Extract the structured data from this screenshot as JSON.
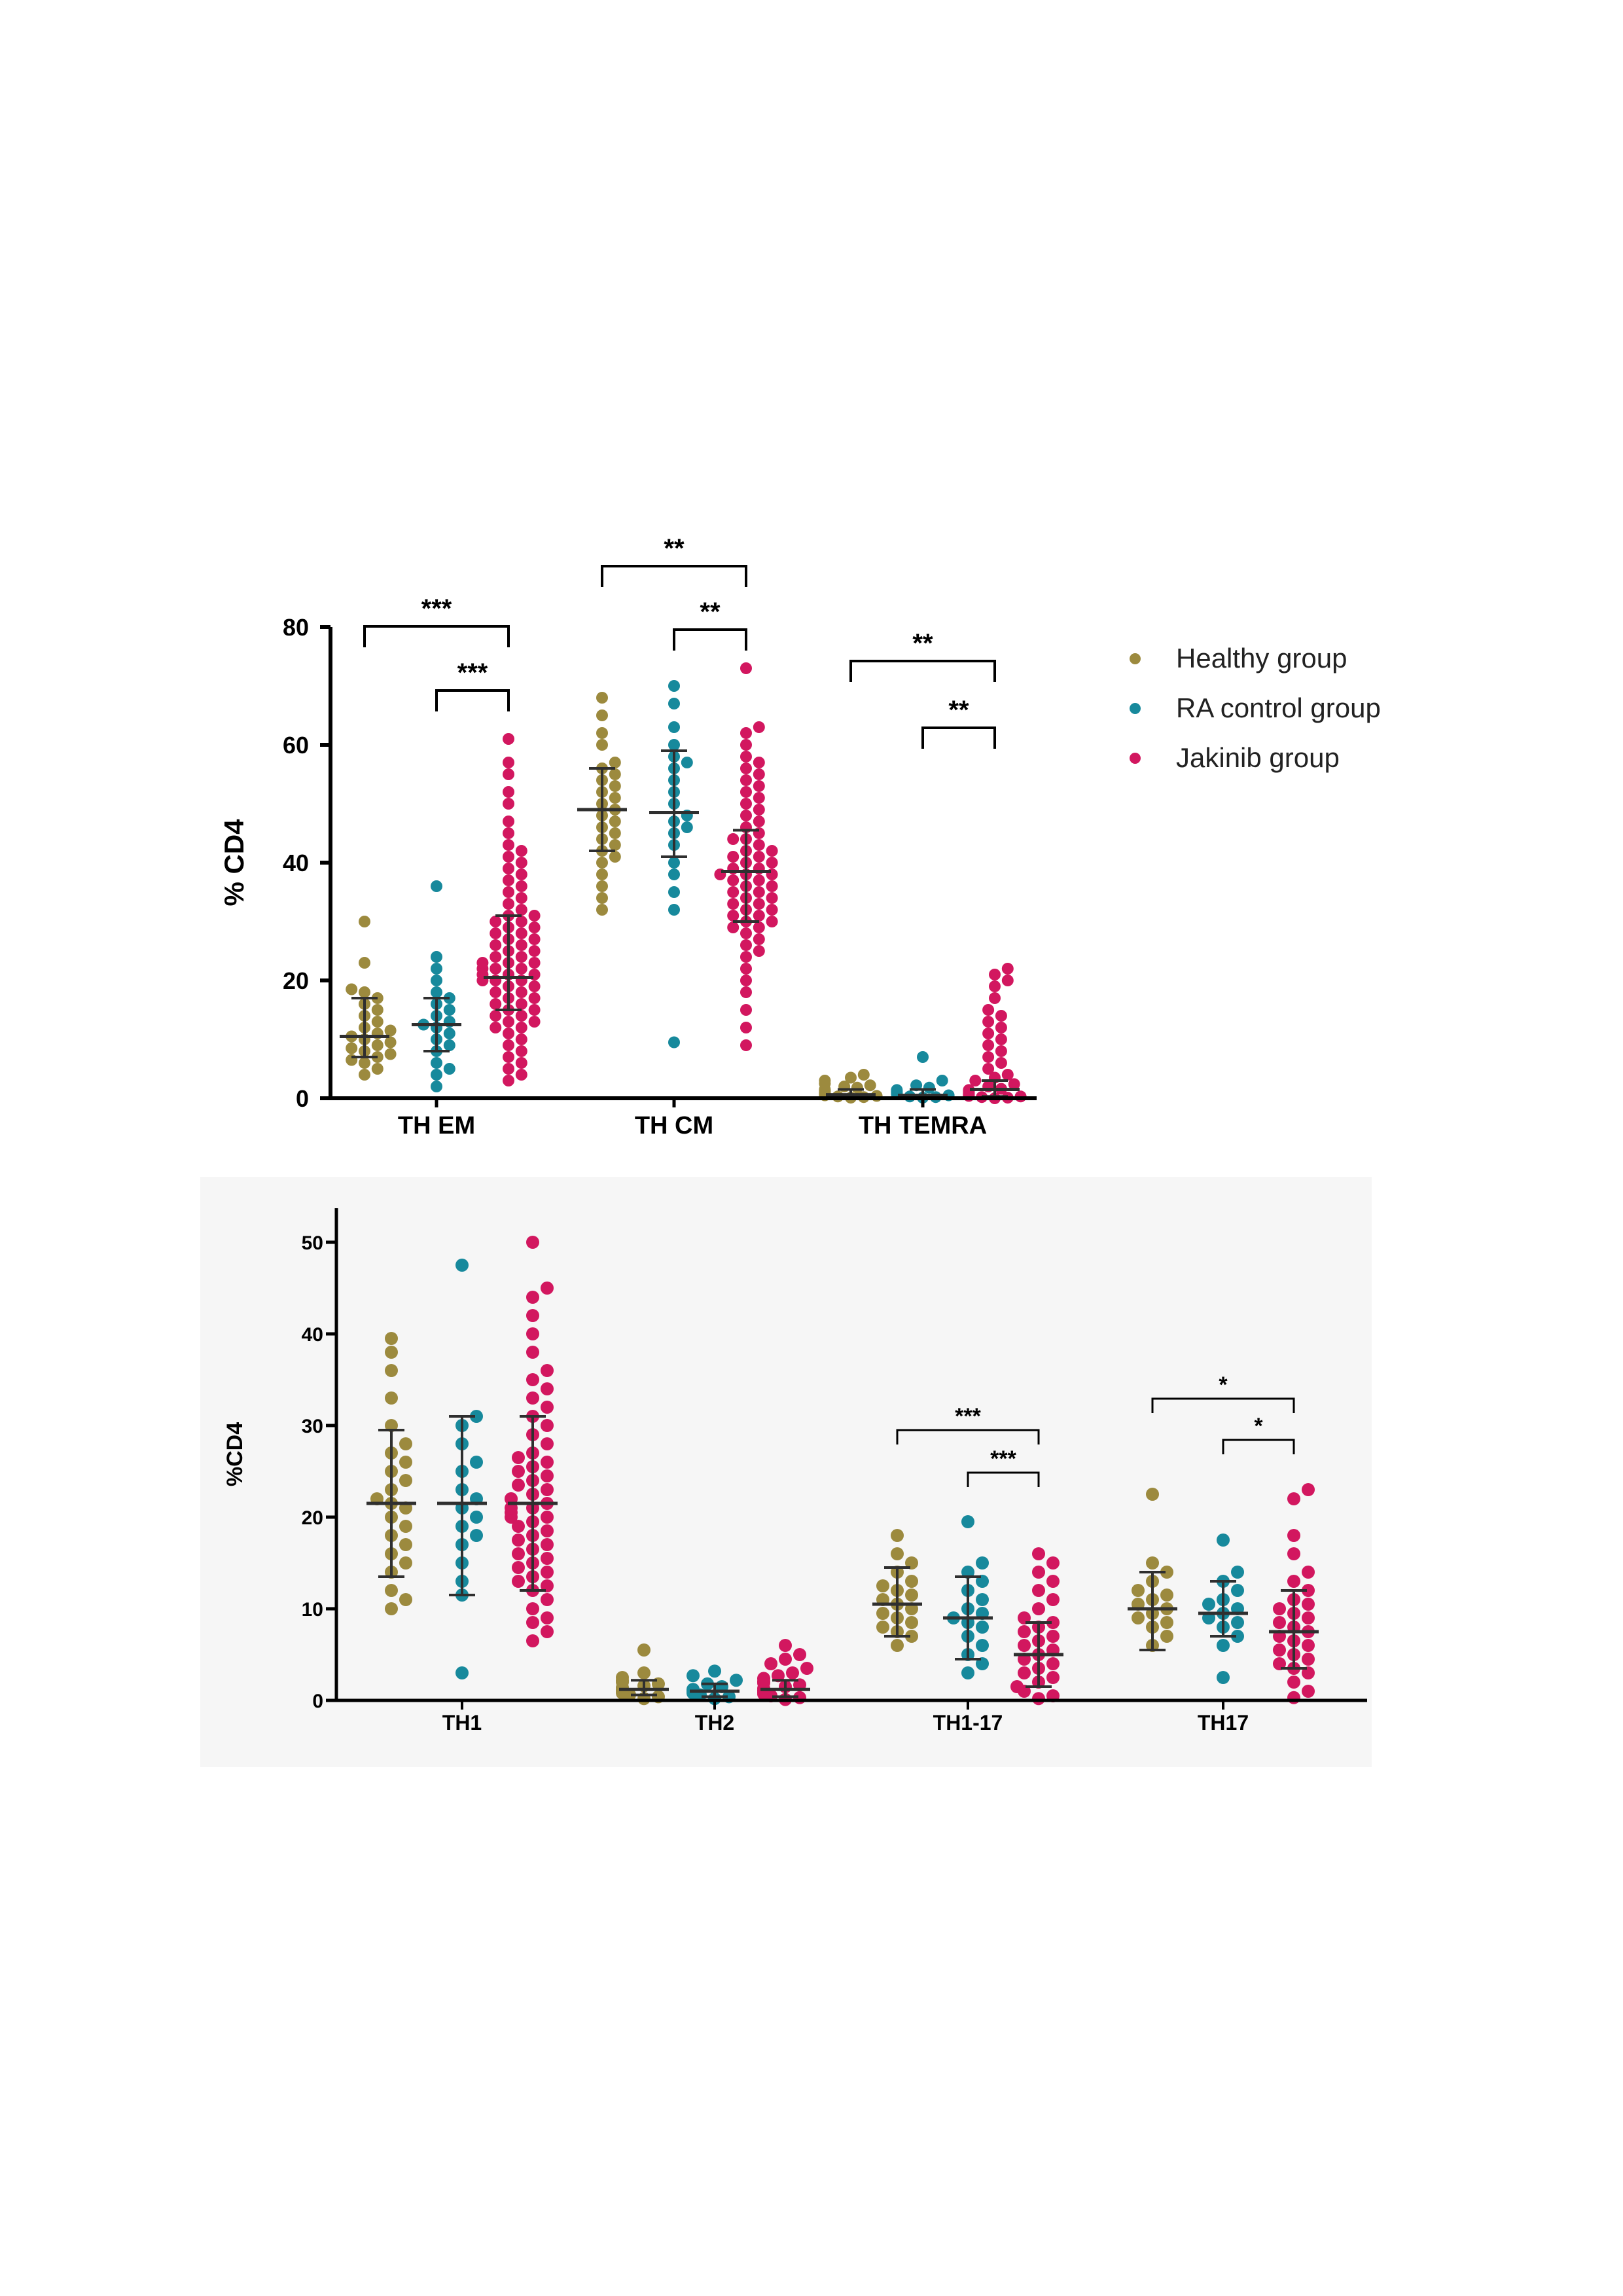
{
  "colors": {
    "healthy": "#9C8A3E",
    "ra_control": "#17899C",
    "jakinib": "#D2175F",
    "error_bar": "#2f2f2f",
    "axis": "#000000",
    "panel2_bg": "#f6f6f6"
  },
  "legend": [
    {
      "label": "Healthy group",
      "color_key": "healthy"
    },
    {
      "label": "RA control group",
      "color_key": "ra_control"
    },
    {
      "label": "Jakinib group",
      "color_key": "jakinib"
    }
  ],
  "chart_data": [
    {
      "type": "scatter",
      "subtype": "dot-plot with median and interquartile range",
      "title": "",
      "ylabel": "% CD4",
      "ylim": [
        0,
        80
      ],
      "yticks": [
        "0",
        "20",
        "40",
        "60",
        "80"
      ],
      "categories": [
        "TH EM",
        "TH CM",
        "TH TEMRA"
      ],
      "series": [
        {
          "name": "Healthy group",
          "color_key": "healthy",
          "values": [
            [
              4,
              5,
              6,
              6.5,
              7,
              7.5,
              8,
              8.5,
              9,
              9.5,
              10,
              10.5,
              11,
              11.5,
              12,
              13,
              14,
              15,
              16,
              17,
              18,
              18.5,
              23,
              30
            ],
            [
              32,
              34,
              36,
              38,
              40,
              41,
              42,
              43,
              44,
              45,
              46,
              47,
              48,
              49,
              50,
              51,
              52,
              53,
              54,
              55,
              56,
              57,
              60,
              62,
              65,
              68
            ],
            [
              0.1,
              0.2,
              0.3,
              0.4,
              0.5,
              0.6,
              0.7,
              0.8,
              0.9,
              1,
              1.1,
              1.3,
              1.5,
              1.8,
              2,
              2.2,
              2.5,
              3,
              3.5,
              4
            ]
          ],
          "median": [
            10.5,
            49,
            0.6
          ],
          "q1": [
            7,
            42,
            0.2
          ],
          "q3": [
            17,
            56,
            1.5
          ]
        },
        {
          "name": "RA control group",
          "color_key": "ra_control",
          "values": [
            [
              2,
              4,
              5,
              6,
              8,
              9,
              10,
              11,
              12,
              12.5,
              13,
              14,
              15,
              16,
              17,
              18,
              20,
              22,
              24,
              36
            ],
            [
              9.5,
              32,
              35,
              38,
              40,
              43,
              45,
              46,
              47,
              48,
              50,
              52,
              54,
              56,
              57,
              58,
              60,
              63,
              67,
              70
            ],
            [
              0.1,
              0.2,
              0.3,
              0.5,
              0.7,
              0.9,
              1.1,
              1.4,
              1.8,
              2.2,
              3,
              7
            ]
          ],
          "median": [
            12.5,
            48.5,
            0.5
          ],
          "q1": [
            8,
            41,
            0.2
          ],
          "q3": [
            17,
            59,
            1.5
          ]
        },
        {
          "name": "Jakinib group",
          "color_key": "jakinib",
          "values": [
            [
              3,
              4,
              5,
              6,
              7,
              8,
              9,
              10,
              11,
              12,
              12,
              13,
              13,
              14,
              14,
              15,
              15,
              16,
              16,
              17,
              17,
              18,
              18,
              19,
              19,
              20,
              20,
              20,
              21,
              21,
              21,
              22,
              22,
              22,
              23,
              23,
              23,
              24,
              24,
              25,
              25,
              26,
              26,
              27,
              27,
              28,
              28,
              29,
              29,
              30,
              30,
              31,
              31,
              32,
              33,
              34,
              35,
              36,
              37,
              38,
              39,
              40,
              41,
              42,
              43,
              45,
              47,
              50,
              52,
              55,
              57,
              61
            ],
            [
              9,
              12,
              15,
              18,
              20,
              22,
              24,
              25,
              26,
              27,
              28,
              29,
              29,
              30,
              30,
              31,
              31,
              32,
              32,
              33,
              33,
              34,
              34,
              35,
              35,
              36,
              36,
              37,
              37,
              38,
              38,
              38,
              39,
              39,
              40,
              40,
              41,
              41,
              42,
              42,
              43,
              44,
              44,
              45,
              46,
              47,
              48,
              49,
              50,
              51,
              52,
              53,
              54,
              55,
              56,
              57,
              58,
              60,
              62,
              63,
              73
            ],
            [
              0,
              0.1,
              0.2,
              0.3,
              0.4,
              0.5,
              0.6,
              0.7,
              0.8,
              1,
              1.2,
              1.4,
              1.6,
              2,
              2.4,
              3,
              3.5,
              4,
              5,
              6,
              7,
              8,
              9,
              10,
              11,
              12,
              13,
              14,
              15,
              17,
              19,
              20,
              21,
              22
            ]
          ],
          "median": [
            20.5,
            38.5,
            1.5
          ],
          "q1": [
            15,
            30,
            0.3
          ],
          "q3": [
            31,
            45.5,
            3
          ]
        }
      ],
      "annotations": [
        {
          "text": "***",
          "category": "TH EM",
          "from": "Healthy group",
          "to": "Jakinib group"
        },
        {
          "text": "***",
          "category": "TH EM",
          "from": "RA control group",
          "to": "Jakinib group"
        },
        {
          "text": "**",
          "category": "TH CM",
          "from": "Healthy group",
          "to": "Jakinib group"
        },
        {
          "text": "**",
          "category": "TH CM",
          "from": "RA control group",
          "to": "Jakinib group"
        },
        {
          "text": "**",
          "category": "TH TEMRA",
          "from": "Healthy group",
          "to": "Jakinib group"
        },
        {
          "text": "**",
          "category": "TH TEMRA",
          "from": "RA control group",
          "to": "Jakinib group"
        }
      ]
    },
    {
      "type": "scatter",
      "subtype": "dot-plot with median and interquartile range",
      "title": "",
      "ylabel": "%CD4",
      "ylim": [
        0,
        55
      ],
      "yticks": [
        "0",
        "10",
        "20",
        "30",
        "40",
        "50"
      ],
      "categories": [
        "TH1",
        "TH2",
        "TH1-17",
        "TH17"
      ],
      "series": [
        {
          "name": "Healthy group",
          "color_key": "healthy",
          "values": [
            [
              10,
              11,
              12,
              14,
              15,
              16,
              17,
              18,
              19,
              20,
              21,
              21.5,
              22,
              23,
              24,
              25,
              26,
              27,
              28,
              30,
              33,
              36,
              38,
              39.5
            ],
            [
              0.2,
              0.4,
              0.6,
              0.8,
              1,
              1.2,
              1.4,
              1.6,
              1.8,
              2,
              2.2,
              2.5,
              3,
              5.5
            ],
            [
              6,
              7,
              7.5,
              8,
              8.5,
              9,
              9.5,
              10,
              10.5,
              11,
              11.5,
              12,
              12.5,
              13,
              14,
              15,
              16,
              18
            ],
            [
              6,
              7,
              8,
              8.5,
              9,
              9.5,
              10,
              10.5,
              11,
              11.5,
              12,
              13,
              14,
              15,
              22.5
            ]
          ],
          "median": [
            21.5,
            1.2,
            10.5,
            10
          ],
          "q1": [
            13.5,
            0.6,
            7,
            5.5
          ],
          "q3": [
            29.5,
            2.2,
            14.5,
            14
          ]
        },
        {
          "name": "RA control group",
          "color_key": "ra_control",
          "values": [
            [
              3,
              11.5,
              13,
              15,
              17,
              18,
              19,
              20,
              21,
              22,
              23,
              25,
              26,
              28,
              30,
              31,
              47.5
            ],
            [
              0.2,
              0.4,
              0.6,
              0.8,
              1,
              1.2,
              1.5,
              1.8,
              2.2,
              2.7,
              3.2
            ],
            [
              3,
              4,
              5,
              6,
              7,
              8,
              8.5,
              9,
              9.5,
              10,
              11,
              12,
              13,
              14,
              15,
              19.5
            ],
            [
              2.5,
              6,
              7,
              8,
              8.5,
              9,
              9.5,
              10,
              10.5,
              11,
              12,
              13,
              14,
              17.5
            ]
          ],
          "median": [
            21.5,
            1,
            9,
            9.5
          ],
          "q1": [
            11.5,
            0.4,
            4.5,
            7
          ],
          "q3": [
            31,
            1.8,
            13.5,
            13
          ]
        },
        {
          "name": "Jakinib group",
          "color_key": "jakinib",
          "values": [
            [
              6.5,
              7.5,
              8.5,
              9,
              10,
              11,
              12,
              12.5,
              13,
              13.5,
              14,
              14.5,
              15,
              15.5,
              16,
              16.5,
              17,
              17.5,
              18,
              18.5,
              19,
              19.5,
              20,
              20,
              20.5,
              21,
              21,
              21.5,
              22,
              22,
              22.5,
              23,
              23.5,
              24,
              24.5,
              25,
              25.5,
              26,
              26.5,
              27,
              28,
              29,
              30,
              31,
              32,
              33,
              34,
              35,
              36,
              38,
              40,
              42,
              44,
              45,
              50
            ],
            [
              0.1,
              0.3,
              0.5,
              0.7,
              0.9,
              1.1,
              1.3,
              1.5,
              1.7,
              1.9,
              2.1,
              2.4,
              2.7,
              3,
              3.5,
              4,
              4.5,
              5,
              6
            ],
            [
              0.2,
              0.5,
              1,
              1.5,
              2,
              2.5,
              3,
              3.5,
              4,
              4.5,
              5,
              5.5,
              6,
              6.5,
              7,
              7.5,
              8,
              8.5,
              9,
              10,
              11,
              12,
              13,
              14,
              15,
              16
            ],
            [
              0.3,
              1,
              2,
              3,
              3.5,
              4,
              4.5,
              5,
              5.5,
              6,
              6.5,
              7,
              7.5,
              8,
              8.5,
              9,
              9.5,
              10,
              10.5,
              11,
              12,
              13,
              14,
              16,
              18,
              22,
              23
            ]
          ],
          "median": [
            21.5,
            1.2,
            5,
            7.5
          ],
          "q1": [
            12,
            0.4,
            1.5,
            3.5
          ],
          "q3": [
            31,
            2.2,
            8.5,
            12
          ]
        }
      ],
      "annotations": [
        {
          "text": "***",
          "category": "TH1-17",
          "from": "Healthy group",
          "to": "Jakinib group"
        },
        {
          "text": "***",
          "category": "TH1-17",
          "from": "RA control group",
          "to": "Jakinib group"
        },
        {
          "text": "*",
          "category": "TH17",
          "from": "Healthy group",
          "to": "Jakinib group"
        },
        {
          "text": "*",
          "category": "TH17",
          "from": "RA control group",
          "to": "Jakinib group"
        }
      ]
    }
  ]
}
